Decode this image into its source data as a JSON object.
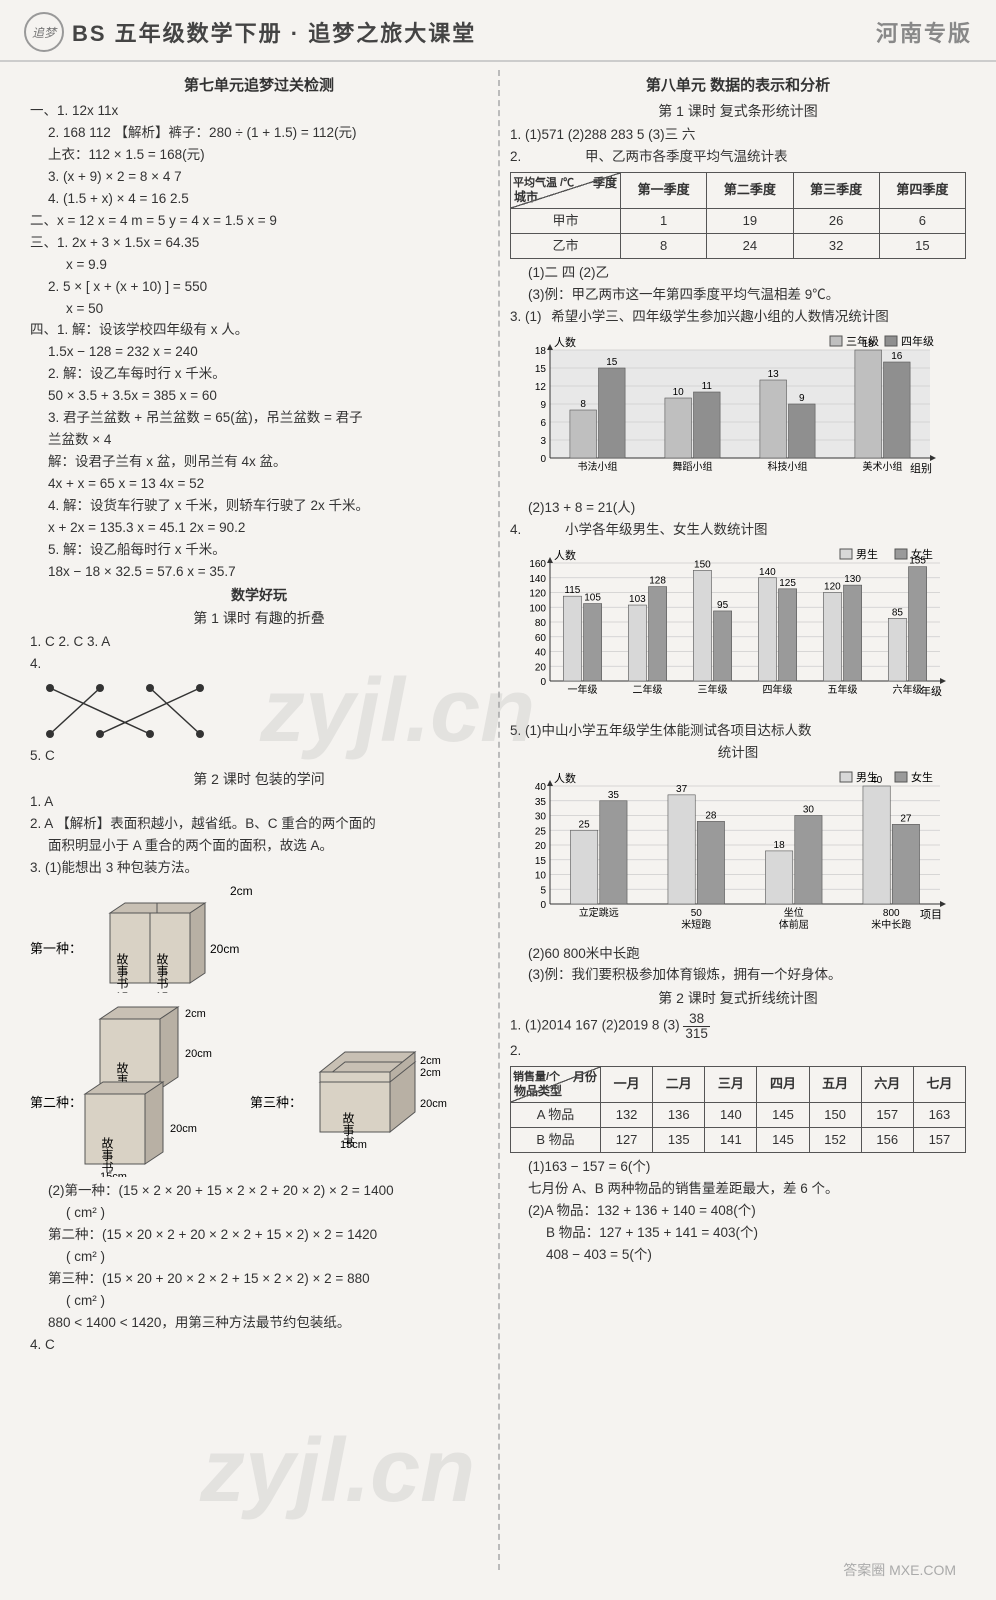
{
  "header": {
    "logo_text": "追梦",
    "title": "BS 五年级数学下册 · 追梦之旅大课堂",
    "edition": "河南专版"
  },
  "watermark1": "zyjl.cn",
  "watermark2": "zyjl.cn",
  "bottom_stamp": "答案圈   MXE.COM",
  "left": {
    "u7_title": "第七单元追梦过关检测",
    "l1": "一、1. 12x   11x",
    "l2": "2. 168   112   【解析】裤子：280 ÷ (1 + 1.5) = 112(元)",
    "l2b": "上衣：112 × 1.5 = 168(元)",
    "l3": "3. (x + 9) × 2 = 8 × 4   7",
    "l4": "4. (1.5 + x) × 4 = 16   2.5",
    "l5": "二、x = 12   x = 4   m = 5   y = 4   x = 1.5   x = 9",
    "l6": "三、1. 2x + 3 × 1.5x = 64.35",
    "l6b": "x = 9.9",
    "l7": "2. 5 × [ x + (x + 10) ] = 550",
    "l7b": "x = 50",
    "l8": "四、1. 解：设该学校四年级有 x 人。",
    "l8b": "1.5x − 128 = 232   x = 240",
    "l9": "2. 解：设乙车每时行 x 千米。",
    "l9b": "50 × 3.5 + 3.5x = 385   x = 60",
    "l10": "3. 君子兰盆数 + 吊兰盆数 = 65(盆)，吊兰盆数 = 君子",
    "l10a": "兰盆数 × 4",
    "l10b": "解：设君子兰有 x 盆，则吊兰有 4x 盆。",
    "l10c": "4x + x = 65   x = 13   4x = 52",
    "l11": "4. 解：设货车行驶了 x 千米，则轿车行驶了 2x 千米。",
    "l11b": "x + 2x = 135.3   x = 45.1   2x = 90.2",
    "l12": "5. 解：设乙船每时行 x 千米。",
    "l12b": "18x − 18 × 32.5 = 57.6   x = 35.7",
    "fun_title": "数学好玩",
    "fun_s1": "第 1 课时   有趣的折叠",
    "f1": "1. C   2. C   3. A",
    "f4": "4.",
    "f5": "5. C",
    "fun_s2": "第 2 课时   包装的学问",
    "p1": "1. A",
    "p2": "2. A  【解析】表面积越小，越省纸。B、C 重合的两个面的",
    "p2b": "面积明显小于 A 重合的两个面的面积，故选 A。",
    "p3": "3. (1)能想出 3 种包装方法。",
    "books": {
      "label": "故事书",
      "first": "第一种：",
      "second": "第二种：",
      "third": "第三种：",
      "d2": "2cm",
      "d15": "15cm",
      "d20": "20cm"
    },
    "p3_2": "(2)第一种：(15 × 2 × 20 + 15 × 2 × 2 + 20 × 2) × 2 = 1400",
    "p3_2u": "( cm² )",
    "p3_3": "第二种：(15 × 20 × 2 + 20 × 2 × 2 + 15 × 2) × 2 = 1420",
    "p3_3u": "( cm² )",
    "p3_4": "第三种：(15 × 20 + 20 × 2 × 2 + 15 × 2 × 2) × 2 = 880",
    "p3_4u": "( cm² )",
    "p3_5": "880 < 1400 < 1420，用第三种方法最节约包装纸。",
    "p4": "4. C"
  },
  "right": {
    "u8_title": "第八单元   数据的表示和分析",
    "u8_s1": "第 1 课时   复式条形统计图",
    "r1": "1. (1)571   (2)288   283   5   (3)三   六",
    "r2": "2.",
    "table1": {
      "caption": "甲、乙两市各季度平均气温统计表",
      "diag_top": "季度",
      "diag_bot": "城市",
      "corner": "平均气温 /℃",
      "cols": [
        "第一季度",
        "第二季度",
        "第三季度",
        "第四季度"
      ],
      "rows": [
        {
          "name": "甲市",
          "vals": [
            "1",
            "19",
            "26",
            "6"
          ]
        },
        {
          "name": "乙市",
          "vals": [
            "8",
            "24",
            "32",
            "15"
          ]
        }
      ]
    },
    "r2b": "(1)二   四   (2)乙",
    "r2c": "(3)例：甲乙两市这一年第四季度平均气温相差 9℃。",
    "r3": "3. (1)",
    "chart1": {
      "title": "希望小学三、四年级学生参加兴趣小组的人数情况统计图",
      "legend": [
        "三年级",
        "四年级"
      ],
      "ylabel": "人数",
      "xlabel": "组别",
      "yticks": [
        0,
        3,
        6,
        9,
        12,
        15,
        18
      ],
      "cats": [
        "书法小组",
        "舞蹈小组",
        "科技小组",
        "美术小组"
      ],
      "s1": [
        8,
        10,
        13,
        18
      ],
      "s2": [
        15,
        11,
        9,
        16
      ],
      "c1": "#bfbfbf",
      "c2": "#8f8f8f",
      "bg": "#e8e8e8"
    },
    "r3b": "(2)13 + 8 = 21(人)",
    "r4": "4.",
    "chart2": {
      "title": "小学各年级男生、女生人数统计图",
      "legend": [
        "男生",
        "女生"
      ],
      "ylabel": "人数",
      "xlabel": "年级",
      "yticks": [
        0,
        20,
        40,
        60,
        80,
        100,
        120,
        140,
        160
      ],
      "cats": [
        "一年级",
        "二年级",
        "三年级",
        "四年级",
        "五年级",
        "六年级"
      ],
      "s1": [
        115,
        103,
        150,
        140,
        120,
        85
      ],
      "s2": [
        105,
        128,
        95,
        125,
        130,
        155
      ],
      "c1": "#d8d8d8",
      "c2": "#9a9a9a"
    },
    "r5": "5. (1)中山小学五年级学生体能测试各项目达标人数",
    "r5b": "统计图",
    "chart3": {
      "legend": [
        "男生",
        "女生"
      ],
      "ylabel": "人数",
      "xlabel": "项目",
      "yticks": [
        0,
        5,
        10,
        15,
        20,
        25,
        30,
        35,
        40
      ],
      "cats": [
        "立定跳远",
        "50米短跑",
        "坐位体前屈",
        "800米中长跑"
      ],
      "s1": [
        25,
        37,
        18,
        40
      ],
      "s2": [
        35,
        28,
        30,
        27
      ],
      "c1": "#d8d8d8",
      "c2": "#9a9a9a",
      "ylparen_l": "(",
      "ylparen_r": ")"
    },
    "r5c": "(2)60   800米中长跑",
    "r5d": "(3)例：我们要积极参加体育锻炼，拥有一个好身体。",
    "u8_s2": "第 2 课时   复式折线统计图",
    "s2_1a": "1. (1)2014   167   (2)2019   8   (3)",
    "s2_1_frac_n": "38",
    "s2_1_frac_d": "315",
    "s2_2": "2.",
    "table2": {
      "diag_top": "月份",
      "diag_bot": "物品类型",
      "corner": "销售量/个",
      "cols": [
        "一月",
        "二月",
        "三月",
        "四月",
        "五月",
        "六月",
        "七月"
      ],
      "rows": [
        {
          "name": "A 物品",
          "vals": [
            "132",
            "136",
            "140",
            "145",
            "150",
            "157",
            "163"
          ]
        },
        {
          "name": "B 物品",
          "vals": [
            "127",
            "135",
            "141",
            "145",
            "152",
            "156",
            "157"
          ]
        }
      ]
    },
    "s2_2a": "(1)163 − 157 = 6(个)",
    "s2_2b": "七月份 A、B 两种物品的销售量差距最大，差 6 个。",
    "s2_2c": "(2)A 物品：132 + 136 + 140 = 408(个)",
    "s2_2d": "B 物品：127 + 135 + 141 = 403(个)",
    "s2_2e": "408 − 403 = 5(个)"
  }
}
